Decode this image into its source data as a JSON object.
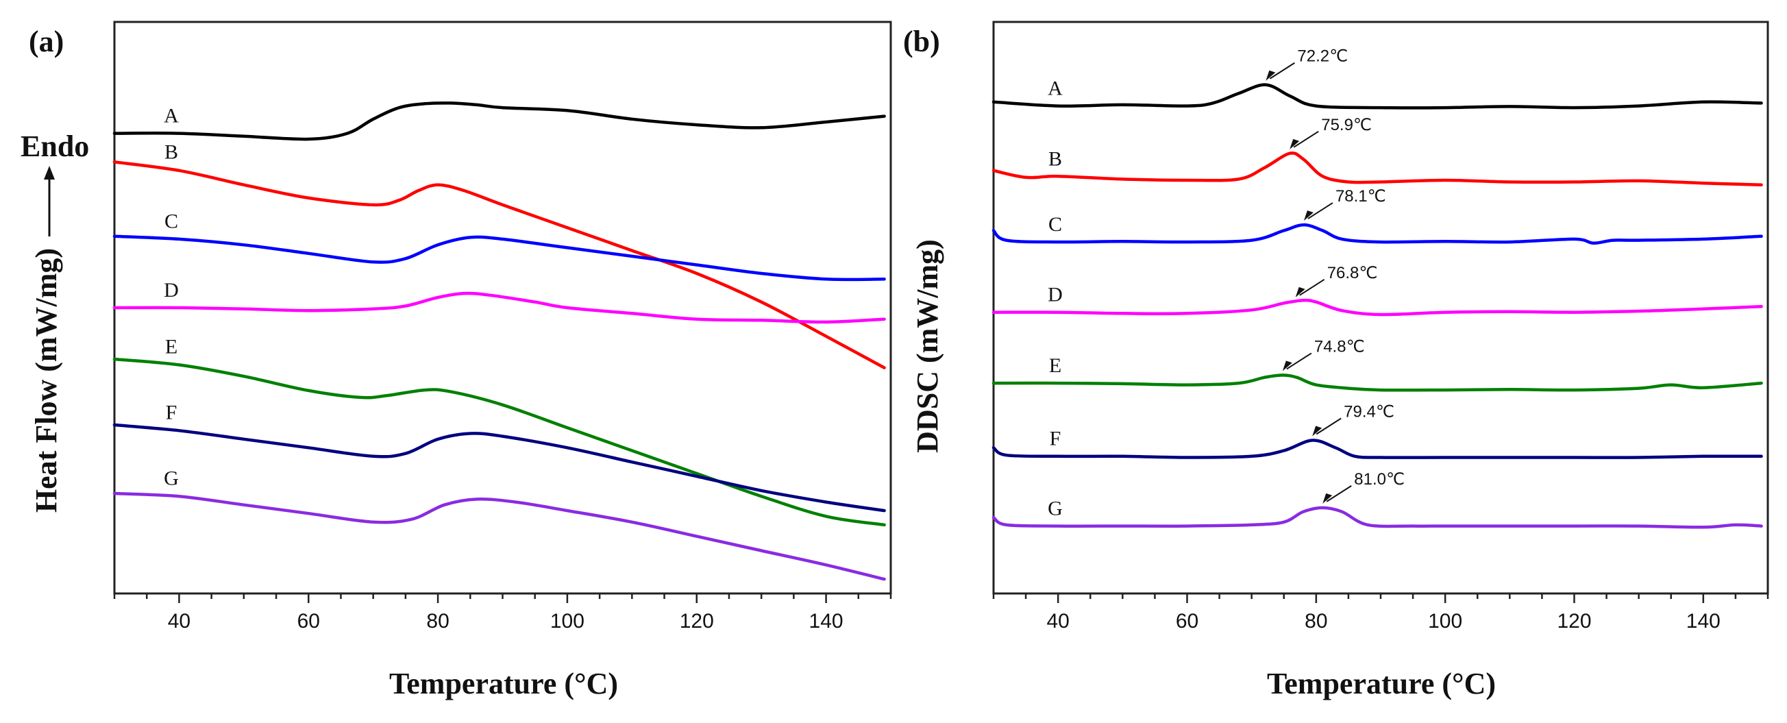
{
  "chart_data": [
    {
      "panel": "(a)",
      "type": "line",
      "xlabel": "Temperature (°C)",
      "ylabel": "Heat Flow  (mW/mg)",
      "yaxis_note": "Endo",
      "xlim": [
        30,
        150
      ],
      "ylim": [
        0,
        100
      ],
      "xticks": [
        40,
        60,
        80,
        100,
        120,
        140
      ],
      "yticks_shown": false,
      "series": [
        {
          "name": "A",
          "color": "#000000",
          "x": [
            30,
            40,
            50,
            60,
            66,
            70,
            74,
            78,
            82,
            86,
            90,
            100,
            110,
            120,
            130,
            140,
            149
          ],
          "y": [
            80.5,
            80.5,
            80.0,
            79.5,
            80.5,
            83.0,
            85.0,
            85.7,
            85.8,
            85.5,
            85.0,
            84.5,
            83.0,
            82.0,
            81.5,
            82.5,
            83.5
          ]
        },
        {
          "name": "B",
          "color": "#ff0000",
          "x": [
            30,
            40,
            50,
            60,
            70,
            74,
            77,
            80,
            84,
            90,
            100,
            110,
            120,
            130,
            140,
            149
          ],
          "y": [
            75.5,
            74.0,
            71.5,
            69.2,
            68.0,
            68.8,
            70.5,
            71.5,
            70.5,
            68.0,
            64.0,
            60.0,
            56.0,
            51.0,
            45.0,
            39.5
          ]
        },
        {
          "name": "C",
          "color": "#0000ff",
          "x": [
            30,
            40,
            50,
            60,
            70,
            75,
            80,
            85,
            90,
            100,
            110,
            120,
            130,
            140,
            149
          ],
          "y": [
            62.5,
            62.0,
            61.0,
            59.5,
            58.0,
            58.6,
            61.0,
            62.3,
            62.0,
            60.5,
            59.0,
            57.5,
            56.0,
            55.0,
            55.0
          ]
        },
        {
          "name": "D",
          "color": "#ff00ff",
          "x": [
            30,
            40,
            50,
            60,
            70,
            75,
            80,
            84,
            88,
            95,
            100,
            110,
            120,
            130,
            140,
            149
          ],
          "y": [
            50.0,
            50.0,
            49.8,
            49.5,
            49.8,
            50.3,
            51.8,
            52.5,
            52.2,
            51.0,
            50.0,
            49.0,
            48.0,
            47.8,
            47.5,
            48.0
          ]
        },
        {
          "name": "E",
          "color": "#008000",
          "x": [
            30,
            40,
            50,
            60,
            68,
            72,
            78,
            82,
            90,
            100,
            110,
            120,
            130,
            140,
            149
          ],
          "y": [
            41.0,
            40.0,
            38.0,
            35.5,
            34.3,
            34.6,
            35.6,
            35.3,
            33.0,
            29.0,
            25.0,
            21.0,
            17.0,
            13.5,
            12.0
          ]
        },
        {
          "name": "F",
          "color": "#000080",
          "x": [
            30,
            40,
            50,
            60,
            70,
            75,
            80,
            85,
            90,
            100,
            110,
            120,
            130,
            140,
            149
          ],
          "y": [
            29.5,
            28.5,
            27.0,
            25.5,
            24.0,
            24.5,
            27.0,
            28.0,
            27.5,
            25.5,
            23.0,
            20.5,
            18.0,
            16.0,
            14.5
          ]
        },
        {
          "name": "G",
          "color": "#8a2be2",
          "x": [
            30,
            40,
            50,
            60,
            70,
            76,
            81,
            86,
            92,
            100,
            110,
            120,
            130,
            140,
            149
          ],
          "y": [
            17.5,
            17.0,
            15.5,
            14.0,
            12.5,
            13.0,
            15.5,
            16.5,
            16.0,
            14.5,
            12.5,
            10.0,
            7.5,
            5.0,
            2.5
          ]
        }
      ]
    },
    {
      "panel": "(b)",
      "type": "line",
      "xlabel": "Temperature (°C)",
      "ylabel": "DDSC (mW/mg)",
      "xlim": [
        30,
        150
      ],
      "ylim": [
        0,
        100
      ],
      "xticks": [
        40,
        60,
        80,
        100,
        120,
        140
      ],
      "yticks_shown": false,
      "series": [
        {
          "name": "A",
          "color": "#000000",
          "peak_x": 72.2,
          "peak_label": "72.2℃",
          "x": [
            30,
            40,
            50,
            60,
            64,
            68,
            72.2,
            76,
            80,
            90,
            100,
            110,
            120,
            130,
            140,
            149
          ],
          "y": [
            86.0,
            85.3,
            85.5,
            85.3,
            85.8,
            87.5,
            89.0,
            87.0,
            85.3,
            85.0,
            85.0,
            85.2,
            85.0,
            85.3,
            86.0,
            85.8
          ]
        },
        {
          "name": "B",
          "color": "#ff0000",
          "peak_x": 75.9,
          "peak_label": "75.9℃",
          "x": [
            30,
            35,
            40,
            50,
            60,
            68,
            72,
            75.9,
            78,
            81,
            85,
            90,
            100,
            110,
            120,
            130,
            140,
            149
          ],
          "y": [
            74.0,
            72.8,
            73.0,
            72.5,
            72.3,
            72.5,
            74.5,
            77.0,
            76.0,
            73.0,
            72.0,
            72.0,
            72.3,
            72.0,
            72.0,
            72.2,
            71.8,
            71.5
          ]
        },
        {
          "name": "C",
          "color": "#0000ff",
          "peak_x": 78.1,
          "peak_label": "78.1℃",
          "x": [
            30,
            32,
            40,
            50,
            60,
            70,
            75,
            78.1,
            81,
            84,
            90,
            100,
            110,
            120,
            123,
            126,
            130,
            140,
            149
          ],
          "y": [
            63.5,
            61.8,
            61.5,
            61.6,
            61.5,
            61.8,
            63.5,
            64.5,
            63.5,
            62.0,
            61.5,
            61.6,
            61.5,
            62.0,
            61.3,
            61.8,
            61.8,
            62.0,
            62.5
          ]
        },
        {
          "name": "D",
          "color": "#ff00ff",
          "peak_x": 76.8,
          "peak_label": "76.8℃",
          "x": [
            30,
            40,
            50,
            60,
            70,
            75,
            78,
            80,
            84,
            90,
            100,
            110,
            120,
            130,
            140,
            149
          ],
          "y": [
            49.2,
            49.2,
            49.0,
            49.0,
            49.6,
            50.8,
            51.3,
            51.0,
            49.5,
            48.8,
            49.2,
            49.3,
            49.2,
            49.4,
            49.8,
            50.2
          ]
        },
        {
          "name": "E",
          "color": "#008000",
          "peak_x": 74.8,
          "peak_label": "74.8℃",
          "x": [
            30,
            40,
            50,
            60,
            68,
            72,
            74.8,
            77,
            80,
            85,
            90,
            100,
            110,
            120,
            130,
            135,
            140,
            149
          ],
          "y": [
            36.8,
            36.8,
            36.7,
            36.5,
            36.8,
            37.8,
            38.2,
            37.8,
            36.5,
            35.9,
            35.6,
            35.6,
            35.7,
            35.6,
            35.9,
            36.5,
            36.0,
            36.8
          ]
        },
        {
          "name": "F",
          "color": "#000080",
          "peak_x": 79.4,
          "peak_label": "79.4℃",
          "x": [
            30,
            32,
            40,
            50,
            60,
            70,
            75,
            79.4,
            83,
            86,
            90,
            100,
            110,
            120,
            130,
            140,
            149
          ],
          "y": [
            25.5,
            24.2,
            24.0,
            24.0,
            23.8,
            24.0,
            25.0,
            26.8,
            25.5,
            24.0,
            23.8,
            23.8,
            23.8,
            23.8,
            23.8,
            24.0,
            24.0
          ]
        },
        {
          "name": "G",
          "color": "#8a2be2",
          "peak_x": 81.0,
          "peak_label": "81.0℃",
          "x": [
            30,
            32,
            40,
            50,
            60,
            70,
            75,
            78,
            81,
            84,
            88,
            95,
            100,
            110,
            120,
            130,
            140,
            145,
            149
          ],
          "y": [
            13.3,
            12.0,
            11.8,
            11.8,
            11.8,
            12.0,
            12.5,
            14.3,
            15.0,
            14.3,
            12.0,
            11.8,
            11.8,
            11.8,
            11.8,
            11.8,
            11.6,
            12.0,
            11.8
          ]
        }
      ]
    }
  ]
}
